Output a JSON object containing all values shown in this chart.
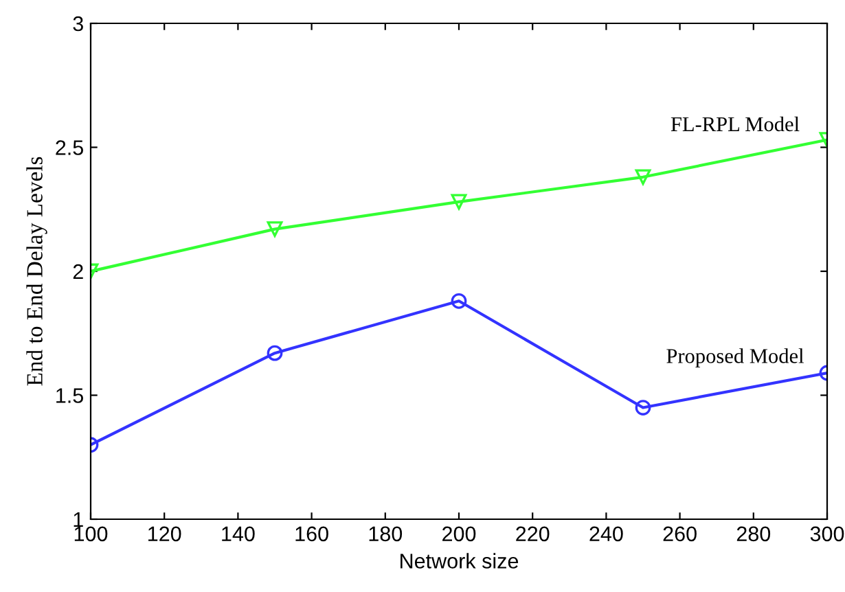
{
  "chart_data": {
    "type": "line",
    "xlabel": "Network size",
    "ylabel": "End to End Delay Levels",
    "x": [
      100,
      150,
      200,
      250,
      300
    ],
    "series": [
      {
        "name": "FL-RPL Model",
        "color": "#33ff33",
        "marker": "triangle",
        "values": [
          2.0,
          2.17,
          2.28,
          2.38,
          2.53
        ]
      },
      {
        "name": "Proposed Model",
        "color": "#3333ff",
        "marker": "circle",
        "values": [
          1.3,
          1.67,
          1.88,
          1.45,
          1.59
        ]
      }
    ],
    "xlim": [
      100,
      300
    ],
    "xticks": [
      100,
      120,
      140,
      160,
      180,
      200,
      220,
      240,
      260,
      280,
      300
    ],
    "ylim": [
      1,
      3
    ],
    "yticks": [
      1,
      1.5,
      2,
      2.5,
      3
    ],
    "grid": false,
    "legend": false,
    "line_style": "solid"
  }
}
